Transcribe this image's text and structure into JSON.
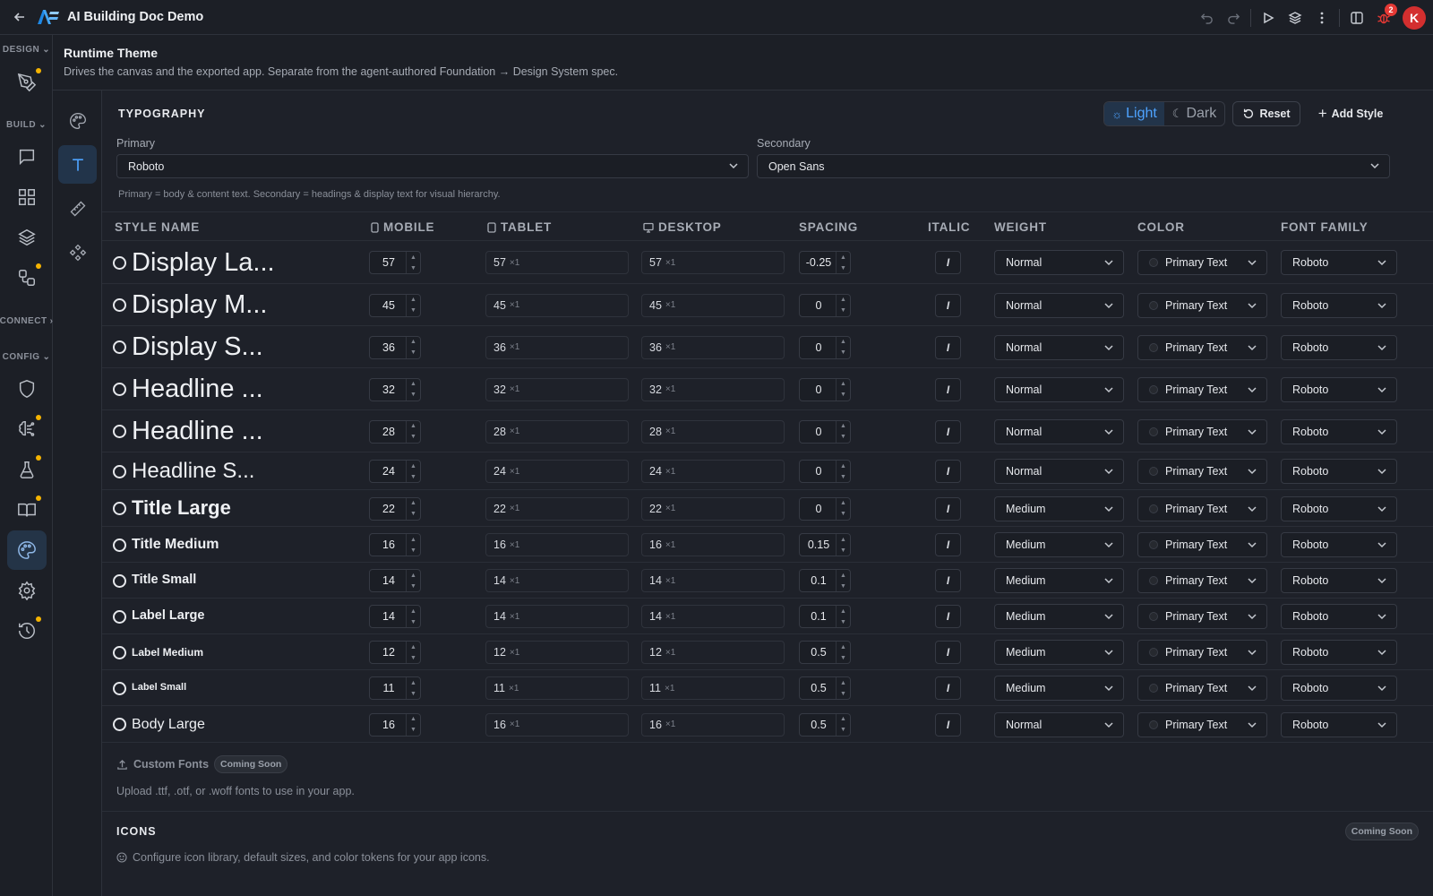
{
  "app": {
    "title": "AI Building Doc Demo",
    "avatar_initial": "K",
    "notification_count": "2"
  },
  "sidebar": {
    "sections": {
      "design": "DESIGN",
      "build": "BUILD",
      "connect": "CONNECT",
      "config": "CONFIG"
    }
  },
  "header": {
    "title": "Runtime Theme",
    "subtitle": "Drives the canvas and the exported app. Separate from the agent-authored Foundation → Design System spec."
  },
  "typography": {
    "section_title": "TYPOGRAPHY",
    "theme_light": "Light",
    "theme_dark": "Dark",
    "reset_label": "Reset",
    "add_style_label": "Add Style",
    "primary_label": "Primary",
    "primary_value": "Roboto",
    "secondary_label": "Secondary",
    "secondary_value": "Open Sans",
    "hint": "Primary = body & content text. Secondary = headings & display text for visual hierarchy.",
    "columns": {
      "style_name": "STYLE NAME",
      "mobile": "MOBILE",
      "tablet": "TABLET",
      "desktop": "DESKTOP",
      "spacing": "SPACING",
      "italic": "ITALIC",
      "weight": "WEIGHT",
      "color": "COLOR",
      "font_family": "FONT FAMILY"
    },
    "multiplier": "×1",
    "italic_glyph": "I",
    "styles": [
      {
        "name": "Display La...",
        "mobile": "57",
        "tablet": "57",
        "desktop": "57",
        "spacing": "-0.25",
        "weight": "Normal",
        "color": "Primary Text",
        "family": "Roboto"
      },
      {
        "name": "Display M...",
        "mobile": "45",
        "tablet": "45",
        "desktop": "45",
        "spacing": "0",
        "weight": "Normal",
        "color": "Primary Text",
        "family": "Roboto"
      },
      {
        "name": "Display S...",
        "mobile": "36",
        "tablet": "36",
        "desktop": "36",
        "spacing": "0",
        "weight": "Normal",
        "color": "Primary Text",
        "family": "Roboto"
      },
      {
        "name": "Headline ...",
        "mobile": "32",
        "tablet": "32",
        "desktop": "32",
        "spacing": "0",
        "weight": "Normal",
        "color": "Primary Text",
        "family": "Roboto"
      },
      {
        "name": "Headline ...",
        "mobile": "28",
        "tablet": "28",
        "desktop": "28",
        "spacing": "0",
        "weight": "Normal",
        "color": "Primary Text",
        "family": "Roboto"
      },
      {
        "name": "Headline S...",
        "mobile": "24",
        "tablet": "24",
        "desktop": "24",
        "spacing": "0",
        "weight": "Normal",
        "color": "Primary Text",
        "family": "Roboto"
      },
      {
        "name": "Title Large",
        "mobile": "22",
        "tablet": "22",
        "desktop": "22",
        "spacing": "0",
        "weight": "Medium",
        "color": "Primary Text",
        "family": "Roboto"
      },
      {
        "name": "Title Medium",
        "mobile": "16",
        "tablet": "16",
        "desktop": "16",
        "spacing": "0.15",
        "weight": "Medium",
        "color": "Primary Text",
        "family": "Roboto"
      },
      {
        "name": "Title Small",
        "mobile": "14",
        "tablet": "14",
        "desktop": "14",
        "spacing": "0.1",
        "weight": "Medium",
        "color": "Primary Text",
        "family": "Roboto"
      },
      {
        "name": "Label Large",
        "mobile": "14",
        "tablet": "14",
        "desktop": "14",
        "spacing": "0.1",
        "weight": "Medium",
        "color": "Primary Text",
        "family": "Roboto"
      },
      {
        "name": "Label Medium",
        "mobile": "12",
        "tablet": "12",
        "desktop": "12",
        "spacing": "0.5",
        "weight": "Medium",
        "color": "Primary Text",
        "family": "Roboto"
      },
      {
        "name": "Label Small",
        "mobile": "11",
        "tablet": "11",
        "desktop": "11",
        "spacing": "0.5",
        "weight": "Medium",
        "color": "Primary Text",
        "family": "Roboto"
      },
      {
        "name": "Body Large",
        "mobile": "16",
        "tablet": "16",
        "desktop": "16",
        "spacing": "0.5",
        "weight": "Normal",
        "color": "Primary Text",
        "family": "Roboto"
      }
    ],
    "custom_fonts_label": "Custom Fonts",
    "coming_soon": "Coming Soon",
    "custom_fonts_desc": "Upload .ttf, .otf, or .woff fonts to use in your app."
  },
  "icons_section": {
    "title": "ICONS",
    "coming_soon": "Coming Soon",
    "desc": "Configure icon library, default sizes, and color tokens for your app icons."
  },
  "colors": {
    "accent": "#4ea3ff",
    "badge": "#e53935",
    "dot": "#f5b301"
  }
}
